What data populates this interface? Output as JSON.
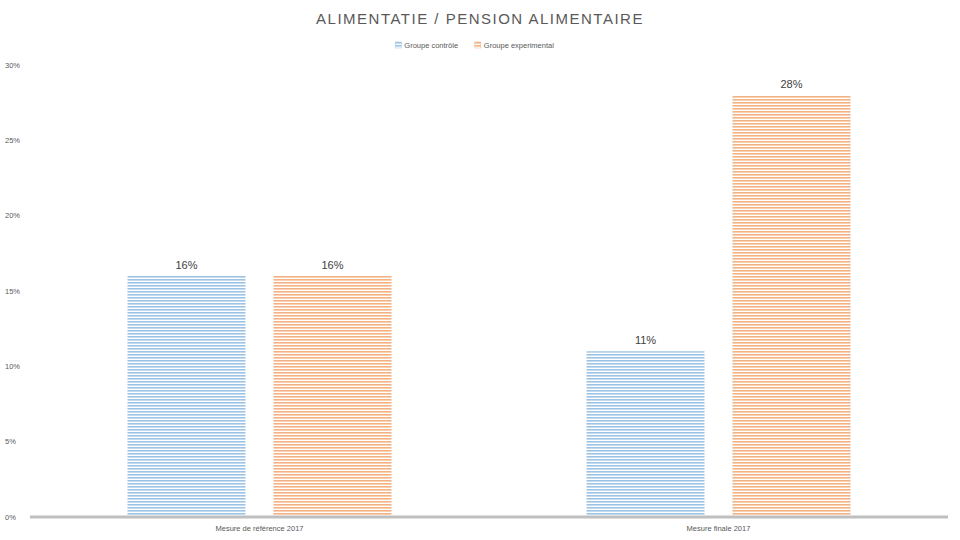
{
  "chart_data": {
    "type": "bar",
    "title": "ALIMENTATIE / PENSION ALIMENTAIRE",
    "categories": [
      "Mesure de référence 2017",
      "Mesure finale 2017"
    ],
    "series": [
      {
        "name": "Groupe contrôle",
        "color": "#9dc3e6",
        "values": [
          16,
          11
        ],
        "value_labels": [
          "16%",
          "11%"
        ]
      },
      {
        "name": "Groupe experimental",
        "color": "#f4b183",
        "values": [
          16,
          28
        ],
        "value_labels": [
          "16%",
          "28%"
        ]
      }
    ],
    "ylim": [
      0,
      30
    ],
    "yticks": [
      {
        "value": 0,
        "label": "0%"
      },
      {
        "value": 5,
        "label": "5%"
      },
      {
        "value": 10,
        "label": "10%"
      },
      {
        "value": 15,
        "label": "15%"
      },
      {
        "value": 20,
        "label": "20%"
      },
      {
        "value": 25,
        "label": "25%"
      },
      {
        "value": 30,
        "label": "30%"
      }
    ],
    "grid": false,
    "legend": "top",
    "data_labels": true
  }
}
